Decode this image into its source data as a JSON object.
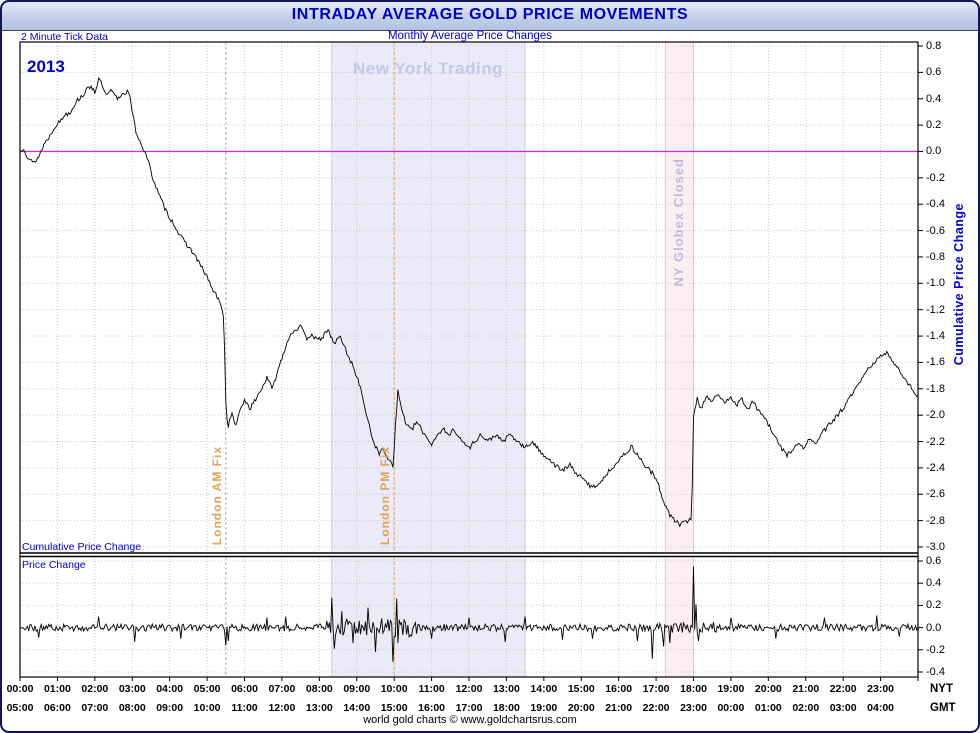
{
  "title": "INTRADAY AVERAGE GOLD PRICE MOVEMENTS",
  "header": {
    "left_note": "2 Minute Tick Data",
    "center_note": "Monthly Average Price Changes"
  },
  "labels": {
    "year": "2013"
  },
  "footer": "world gold charts © www.goldchartsrus.com",
  "colors": {
    "title_text": "#0000bb",
    "accent_blue": "#0000cc",
    "band_lavender": "#eaeaf8",
    "band_lavender_edge": "#c9c9ec",
    "band_pink": "#fdeef2",
    "band_pink_edge": "#f2bcc9",
    "fix_line": "#e0a35e",
    "zero_line": "#e320e3",
    "grid": "#c9c9c9",
    "series": "#000000"
  },
  "chart_data": {
    "type": "line",
    "title": "INTRADAY AVERAGE GOLD PRICE MOVEMENTS",
    "subtitle": "Monthly Average Price Changes",
    "x_unit": "time of day (hours)",
    "x_range": [
      0,
      24
    ],
    "grid": true,
    "noise_seed": 13,
    "x_axis": {
      "row1_label": "NYT",
      "row2_label": "GMT",
      "nyt_ticks": [
        "00:00",
        "01:00",
        "02:00",
        "03:00",
        "04:00",
        "05:00",
        "06:00",
        "07:00",
        "08:00",
        "09:00",
        "10:00",
        "11:00",
        "12:00",
        "13:00",
        "14:00",
        "15:00",
        "16:00",
        "17:00",
        "18:00",
        "19:00",
        "20:00",
        "21:00",
        "22:00",
        "23:00"
      ],
      "gmt_ticks": [
        "05:00",
        "06:00",
        "07:00",
        "08:00",
        "09:00",
        "10:00",
        "11:00",
        "12:00",
        "13:00",
        "14:00",
        "15:00",
        "16:00",
        "17:00",
        "18:00",
        "19:00",
        "20:00",
        "21:00",
        "22:00",
        "23:00",
        "00:00",
        "01:00",
        "02:00",
        "03:00",
        "04:00"
      ]
    },
    "bands": [
      {
        "label": "New York Trading",
        "from": 8.333,
        "to": 13.5,
        "color": "#eaeaf8",
        "edge": "#c9c9ec"
      },
      {
        "label": "NY Globex Closed",
        "from": 17.25,
        "to": 18.0,
        "color": "#fdeef2",
        "edge": "#f2bcc9"
      }
    ],
    "vlines": [
      {
        "label": "London AM Fix",
        "t": 5.5,
        "color": "#e0a35e"
      },
      {
        "label": "London PM Fix",
        "t": 10.0,
        "color": "#e0a35e"
      }
    ],
    "main_panel": {
      "panel_label": "Cumulative Price Change",
      "axis_title": "Cumulative Price Change",
      "ylim": [
        -3.0,
        0.8
      ],
      "ytick_step": 0.2,
      "zero_line": 0.0,
      "tick_labels": [
        "0.8",
        "0.6",
        "0.4",
        "0.2",
        "0.0",
        "-0.2",
        "-0.4",
        "-0.6",
        "-0.8",
        "-1.0",
        "-1.2",
        "-1.4",
        "-1.6",
        "-1.8",
        "-2.0",
        "-2.2",
        "-2.4",
        "-2.6",
        "-2.8",
        "-3.0"
      ],
      "noise_amplitude": 0.018,
      "keypoints": [
        [
          0,
          0
        ],
        [
          0.1,
          0.03
        ],
        [
          0.2,
          -0.04
        ],
        [
          0.35,
          -0.09
        ],
        [
          0.5,
          -0.04
        ],
        [
          0.65,
          0.06
        ],
        [
          0.8,
          0.12
        ],
        [
          0.95,
          0.2
        ],
        [
          1.05,
          0.22
        ],
        [
          1.2,
          0.28
        ],
        [
          1.35,
          0.3
        ],
        [
          1.5,
          0.38
        ],
        [
          1.65,
          0.42
        ],
        [
          1.8,
          0.47
        ],
        [
          1.9,
          0.5
        ],
        [
          2.0,
          0.45
        ],
        [
          2.1,
          0.55
        ],
        [
          2.2,
          0.5
        ],
        [
          2.3,
          0.42
        ],
        [
          2.45,
          0.46
        ],
        [
          2.6,
          0.4
        ],
        [
          2.75,
          0.44
        ],
        [
          2.9,
          0.46
        ],
        [
          3.0,
          0.3
        ],
        [
          3.1,
          0.15
        ],
        [
          3.25,
          0.05
        ],
        [
          3.4,
          -0.05
        ],
        [
          3.55,
          -0.2
        ],
        [
          3.7,
          -0.32
        ],
        [
          3.85,
          -0.42
        ],
        [
          4.0,
          -0.5
        ],
        [
          4.15,
          -0.57
        ],
        [
          4.3,
          -0.65
        ],
        [
          4.5,
          -0.72
        ],
        [
          4.7,
          -0.8
        ],
        [
          4.85,
          -0.88
        ],
        [
          5.0,
          -0.95
        ],
        [
          5.15,
          -1.05
        ],
        [
          5.3,
          -1.12
        ],
        [
          5.45,
          -1.25
        ],
        [
          5.5,
          -1.9
        ],
        [
          5.55,
          -2.1
        ],
        [
          5.65,
          -1.98
        ],
        [
          5.75,
          -2.08
        ],
        [
          5.85,
          -2.0
        ],
        [
          6.0,
          -1.88
        ],
        [
          6.15,
          -1.95
        ],
        [
          6.3,
          -1.88
        ],
        [
          6.45,
          -1.8
        ],
        [
          6.6,
          -1.72
        ],
        [
          6.75,
          -1.8
        ],
        [
          6.9,
          -1.65
        ],
        [
          7.05,
          -1.52
        ],
        [
          7.2,
          -1.4
        ],
        [
          7.35,
          -1.35
        ],
        [
          7.5,
          -1.33
        ],
        [
          7.65,
          -1.42
        ],
        [
          7.8,
          -1.38
        ],
        [
          7.95,
          -1.44
        ],
        [
          8.1,
          -1.4
        ],
        [
          8.25,
          -1.36
        ],
        [
          8.4,
          -1.46
        ],
        [
          8.55,
          -1.4
        ],
        [
          8.7,
          -1.5
        ],
        [
          8.85,
          -1.6
        ],
        [
          9.0,
          -1.7
        ],
        [
          9.15,
          -1.85
        ],
        [
          9.3,
          -2.05
        ],
        [
          9.45,
          -2.2
        ],
        [
          9.6,
          -2.3
        ],
        [
          9.7,
          -2.25
        ],
        [
          9.85,
          -2.33
        ],
        [
          9.97,
          -2.38
        ],
        [
          10.03,
          -2.1
        ],
        [
          10.1,
          -1.82
        ],
        [
          10.2,
          -1.95
        ],
        [
          10.3,
          -2.05
        ],
        [
          10.45,
          -2.12
        ],
        [
          10.6,
          -2.05
        ],
        [
          10.75,
          -2.12
        ],
        [
          10.9,
          -2.18
        ],
        [
          11.0,
          -2.22
        ],
        [
          11.15,
          -2.15
        ],
        [
          11.3,
          -2.1
        ],
        [
          11.45,
          -2.16
        ],
        [
          11.6,
          -2.1
        ],
        [
          11.75,
          -2.18
        ],
        [
          11.9,
          -2.22
        ],
        [
          12.0,
          -2.25
        ],
        [
          12.15,
          -2.2
        ],
        [
          12.3,
          -2.15
        ],
        [
          12.5,
          -2.2
        ],
        [
          12.7,
          -2.15
        ],
        [
          12.9,
          -2.2
        ],
        [
          13.1,
          -2.15
        ],
        [
          13.3,
          -2.2
        ],
        [
          13.5,
          -2.25
        ],
        [
          13.7,
          -2.2
        ],
        [
          13.9,
          -2.28
        ],
        [
          14.1,
          -2.32
        ],
        [
          14.3,
          -2.38
        ],
        [
          14.5,
          -2.42
        ],
        [
          14.7,
          -2.38
        ],
        [
          14.9,
          -2.45
        ],
        [
          15.1,
          -2.5
        ],
        [
          15.3,
          -2.55
        ],
        [
          15.45,
          -2.52
        ],
        [
          15.6,
          -2.48
        ],
        [
          15.8,
          -2.4
        ],
        [
          16.0,
          -2.35
        ],
        [
          16.2,
          -2.28
        ],
        [
          16.35,
          -2.24
        ],
        [
          16.5,
          -2.3
        ],
        [
          16.7,
          -2.38
        ],
        [
          16.9,
          -2.44
        ],
        [
          17.05,
          -2.52
        ],
        [
          17.2,
          -2.65
        ],
        [
          17.35,
          -2.75
        ],
        [
          17.5,
          -2.8
        ],
        [
          17.65,
          -2.83
        ],
        [
          17.8,
          -2.81
        ],
        [
          17.95,
          -2.78
        ],
        [
          18.0,
          -2.0
        ],
        [
          18.1,
          -1.88
        ],
        [
          18.2,
          -1.95
        ],
        [
          18.35,
          -1.85
        ],
        [
          18.5,
          -1.9
        ],
        [
          18.65,
          -1.84
        ],
        [
          18.8,
          -1.9
        ],
        [
          19.0,
          -1.86
        ],
        [
          19.15,
          -1.92
        ],
        [
          19.3,
          -1.88
        ],
        [
          19.45,
          -1.95
        ],
        [
          19.6,
          -1.9
        ],
        [
          19.75,
          -1.97
        ],
        [
          19.9,
          -2.02
        ],
        [
          20.05,
          -2.1
        ],
        [
          20.2,
          -2.18
        ],
        [
          20.35,
          -2.25
        ],
        [
          20.5,
          -2.3
        ],
        [
          20.65,
          -2.26
        ],
        [
          20.8,
          -2.22
        ],
        [
          20.95,
          -2.25
        ],
        [
          21.1,
          -2.18
        ],
        [
          21.25,
          -2.22
        ],
        [
          21.4,
          -2.15
        ],
        [
          21.55,
          -2.1
        ],
        [
          21.7,
          -2.05
        ],
        [
          21.85,
          -2.0
        ],
        [
          22.0,
          -1.95
        ],
        [
          22.15,
          -1.88
        ],
        [
          22.3,
          -1.82
        ],
        [
          22.45,
          -1.75
        ],
        [
          22.6,
          -1.68
        ],
        [
          22.75,
          -1.62
        ],
        [
          22.9,
          -1.58
        ],
        [
          23.05,
          -1.55
        ],
        [
          23.2,
          -1.53
        ],
        [
          23.35,
          -1.6
        ],
        [
          23.5,
          -1.66
        ],
        [
          23.65,
          -1.72
        ],
        [
          23.8,
          -1.78
        ],
        [
          23.95,
          -1.85
        ],
        [
          24,
          -1.87
        ]
      ]
    },
    "lower_panel": {
      "panel_label": "Price Change",
      "ylim": [
        -0.4,
        0.6
      ],
      "ytick_step": 0.2,
      "tick_labels": [
        "0.6",
        "0.4",
        "0.2",
        "0.0",
        "-0.2",
        "-0.4"
      ],
      "noise_amplitude": 0.032,
      "noise_regions": [
        {
          "from": 8.2,
          "to": 10.6,
          "amp": 0.085
        },
        {
          "from": 17.0,
          "to": 18.6,
          "amp": 0.05
        }
      ],
      "spikes": [
        [
          0.5,
          -0.09
        ],
        [
          2.1,
          0.1
        ],
        [
          3.05,
          -0.13
        ],
        [
          4.3,
          -0.1
        ],
        [
          5.5,
          -0.16
        ],
        [
          5.55,
          -0.12
        ],
        [
          6.6,
          0.09
        ],
        [
          7.1,
          0.1
        ],
        [
          8.33,
          0.27
        ],
        [
          8.4,
          -0.19
        ],
        [
          8.6,
          0.15
        ],
        [
          8.9,
          -0.14
        ],
        [
          9.3,
          0.18
        ],
        [
          9.5,
          -0.22
        ],
        [
          9.95,
          -0.31
        ],
        [
          10.05,
          0.26
        ],
        [
          10.1,
          -0.14
        ],
        [
          11.0,
          -0.1
        ],
        [
          12.0,
          0.09
        ],
        [
          12.97,
          -0.13
        ],
        [
          13.5,
          0.1
        ],
        [
          14.5,
          -0.11
        ],
        [
          15.3,
          -0.1
        ],
        [
          16.5,
          -0.12
        ],
        [
          16.9,
          -0.28
        ],
        [
          17.2,
          -0.17
        ],
        [
          17.35,
          -0.14
        ],
        [
          18.0,
          0.55
        ],
        [
          18.07,
          0.21
        ],
        [
          18.13,
          -0.12
        ],
        [
          19.0,
          0.09
        ],
        [
          20.2,
          -0.1
        ],
        [
          21.5,
          0.09
        ],
        [
          22.9,
          0.11
        ],
        [
          23.5,
          -0.08
        ]
      ]
    }
  }
}
